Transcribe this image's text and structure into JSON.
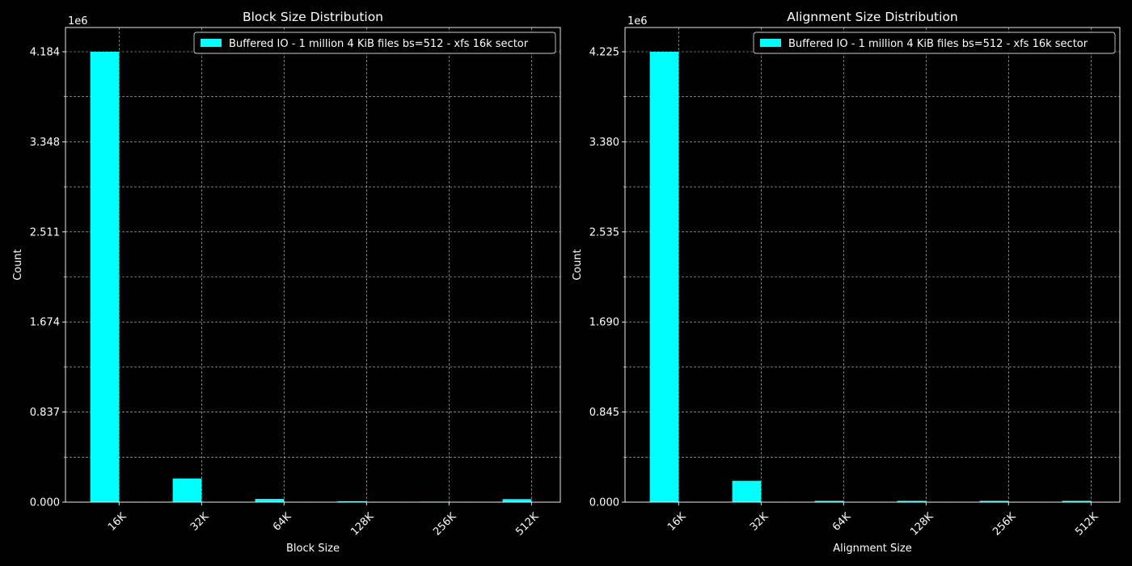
{
  "chart_data": [
    {
      "type": "bar",
      "title": "Block Size Distribution",
      "xlabel": "Block Size",
      "ylabel": "Count",
      "y_multiplier": "1e6",
      "categories": [
        "16K",
        "32K",
        "64K",
        "128K",
        "256K",
        "512K"
      ],
      "yticks": [
        "0.000",
        "0.837",
        "1.674",
        "2.511",
        "3.348",
        "4.184"
      ],
      "ylim": [
        0,
        4.184
      ],
      "series": [
        {
          "name": "Buffered IO - 1 million 4 KiB files bs=512 - xfs 16k sector",
          "values": [
            4.184,
            0.22,
            0.03,
            0.008,
            0.004,
            0.028
          ]
        }
      ],
      "color": "#00ffff",
      "grid": true,
      "legend_position": "top-right"
    },
    {
      "type": "bar",
      "title": "Alignment Size Distribution",
      "xlabel": "Alignment Size",
      "ylabel": "Count",
      "y_multiplier": "1e6",
      "categories": [
        "16K",
        "32K",
        "64K",
        "128K",
        "256K",
        "512K"
      ],
      "yticks": [
        "0.000",
        "0.845",
        "1.690",
        "2.535",
        "3.380",
        "4.225"
      ],
      "ylim": [
        0,
        4.225
      ],
      "series": [
        {
          "name": "Buffered IO - 1 million 4 KiB files bs=512 - xfs 16k sector",
          "values": [
            4.225,
            0.2,
            0.012,
            0.012,
            0.012,
            0.012
          ]
        }
      ],
      "color": "#00ffff",
      "grid": true,
      "legend_position": "top-right"
    }
  ]
}
